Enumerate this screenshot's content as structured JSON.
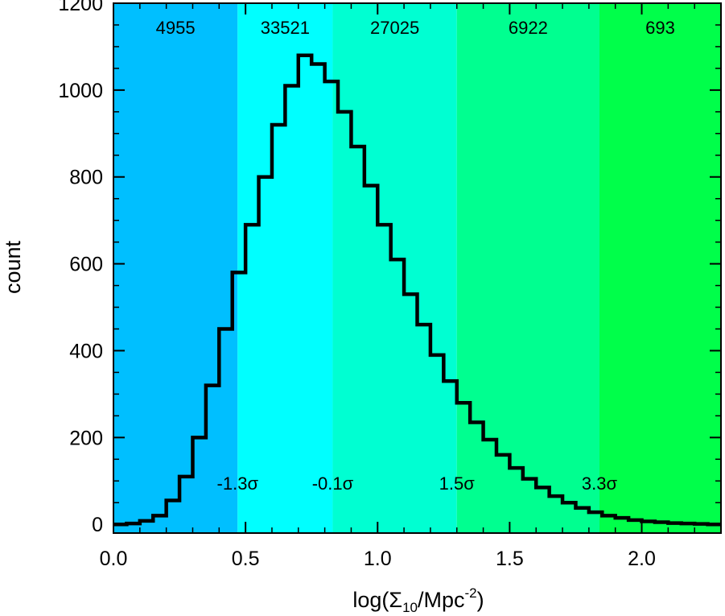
{
  "chart_data": {
    "type": "histogram",
    "xlabel": "log(Σ",
    "xlabel_sub": "10",
    "xlabel_mid": "/Mpc",
    "xlabel_sup": "-2",
    "xlabel_end": ")",
    "ylabel": "count",
    "xlim": [
      0.0,
      2.3
    ],
    "ylim": [
      -20,
      1200
    ],
    "x_ticks": [
      0.0,
      0.5,
      1.0,
      1.5,
      2.0
    ],
    "x_tick_labels": [
      "0.0",
      "0.5",
      "1.0",
      "1.5",
      "2.0"
    ],
    "y_ticks": [
      0,
      200,
      400,
      600,
      800,
      1000,
      1200
    ],
    "y_tick_labels": [
      "0",
      "200",
      "400",
      "600",
      "800",
      "1000",
      "1200"
    ],
    "bands": [
      {
        "x0": 0.0,
        "x1": 0.47,
        "color": "#00bfff",
        "count": "4955",
        "sigma": ""
      },
      {
        "x0": 0.47,
        "x1": 0.83,
        "color": "#00ffff",
        "count": "33521",
        "sigma": "-1.3σ"
      },
      {
        "x0": 0.83,
        "x1": 1.3,
        "color": "#00ffd2",
        "count": "27025",
        "sigma": "-0.1σ"
      },
      {
        "x0": 1.3,
        "x1": 1.84,
        "color": "#00ff90",
        "count": "6922",
        "sigma": "1.5σ"
      },
      {
        "x0": 1.84,
        "x1": 2.3,
        "color": "#00ff4a",
        "count": "693",
        "sigma": "3.3σ"
      }
    ],
    "histogram": {
      "x": [
        0.0,
        0.05,
        0.1,
        0.15,
        0.2,
        0.25,
        0.3,
        0.35,
        0.4,
        0.45,
        0.5,
        0.55,
        0.6,
        0.65,
        0.7,
        0.75,
        0.8,
        0.85,
        0.9,
        0.95,
        1.0,
        1.05,
        1.1,
        1.15,
        1.2,
        1.25,
        1.3,
        1.35,
        1.4,
        1.45,
        1.5,
        1.55,
        1.6,
        1.65,
        1.7,
        1.75,
        1.8,
        1.85,
        1.9,
        1.95,
        2.0,
        2.05,
        2.1,
        2.15,
        2.2,
        2.25,
        2.3
      ],
      "y": [
        0,
        2,
        8,
        20,
        55,
        110,
        200,
        320,
        450,
        580,
        690,
        800,
        920,
        1010,
        1080,
        1060,
        1020,
        950,
        870,
        780,
        690,
        610,
        530,
        460,
        390,
        330,
        280,
        235,
        195,
        160,
        130,
        105,
        85,
        65,
        50,
        38,
        28,
        20,
        15,
        10,
        7,
        5,
        3,
        2,
        1,
        0,
        0
      ]
    }
  }
}
